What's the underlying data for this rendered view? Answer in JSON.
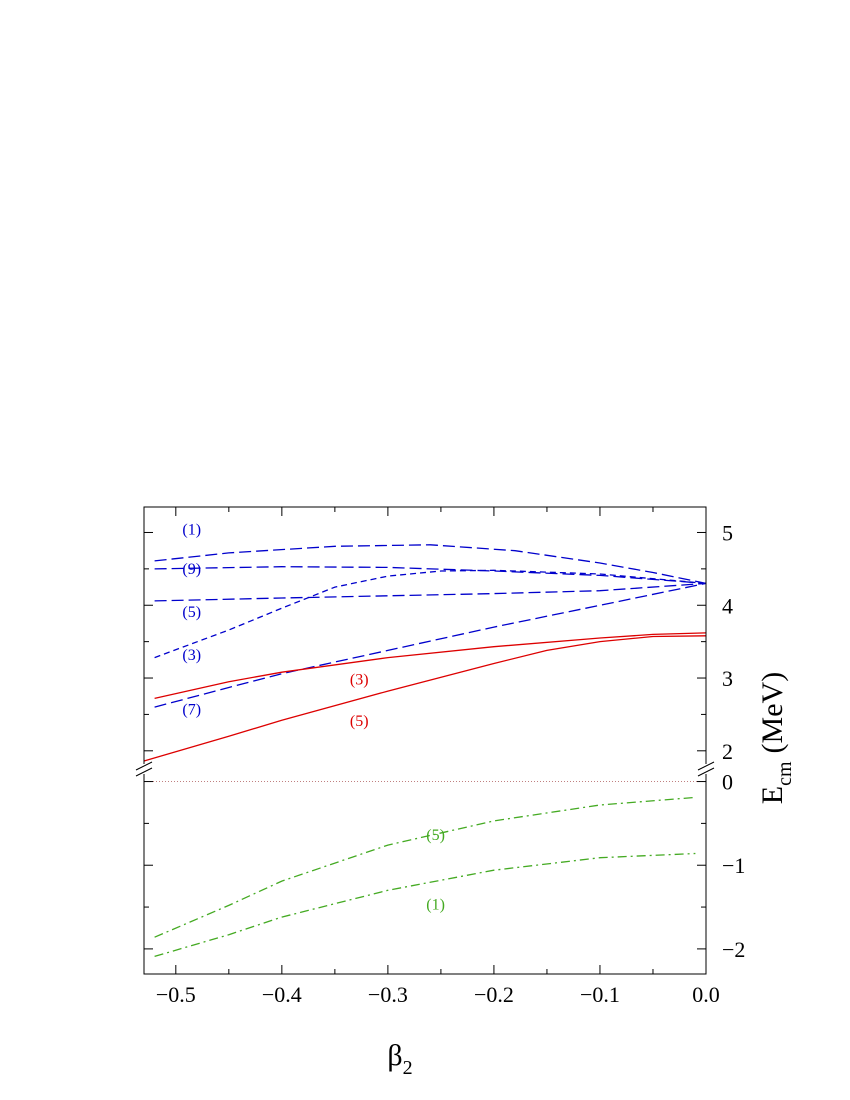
{
  "chart_data": {
    "type": "line",
    "xlabel": "β",
    "xlabel_sub": "2",
    "ylabel": "E",
    "ylabel_sub": "cm",
    "ylabel_unit": "(MeV)",
    "xlim": [
      -0.53,
      0.0
    ],
    "x_ticks": [
      -0.5,
      -0.4,
      -0.3,
      -0.2,
      -0.1,
      0.0
    ],
    "x_tick_labels": [
      "−0.5",
      "−0.4",
      "−0.3",
      "−0.2",
      "−0.1",
      "0.0"
    ],
    "upper_panel": {
      "ylim": [
        1.75,
        5.35
      ],
      "y_ticks": [
        2,
        3,
        4,
        5
      ],
      "y_tick_labels": [
        "2",
        "3",
        "4",
        "5"
      ]
    },
    "lower_panel": {
      "ylim": [
        -2.3,
        0.15
      ],
      "y_ticks": [
        0,
        -1,
        -2
      ],
      "y_tick_labels": [
        "0",
        "−1",
        "−2"
      ],
      "zero_line": true
    },
    "series": [
      {
        "label": "(1)",
        "panel": "upper",
        "color": "#0000cc",
        "style": "long-dash",
        "label_pos": [
          -0.485,
          4.97
        ],
        "points": [
          [
            -0.52,
            4.61
          ],
          [
            -0.45,
            4.72
          ],
          [
            -0.35,
            4.81
          ],
          [
            -0.26,
            4.83
          ],
          [
            -0.18,
            4.75
          ],
          [
            -0.1,
            4.58
          ],
          [
            -0.05,
            4.45
          ],
          [
            0.0,
            4.3
          ]
        ]
      },
      {
        "label": "(9)",
        "panel": "upper",
        "color": "#0000cc",
        "style": "long-dash",
        "label_pos": [
          -0.485,
          4.43
        ],
        "points": [
          [
            -0.52,
            4.5
          ],
          [
            -0.4,
            4.53
          ],
          [
            -0.3,
            4.52
          ],
          [
            -0.2,
            4.47
          ],
          [
            -0.1,
            4.41
          ],
          [
            0.0,
            4.3
          ]
        ]
      },
      {
        "label": "(5)",
        "panel": "upper",
        "color": "#0000cc",
        "style": "long-dash",
        "label_pos": [
          -0.485,
          3.84
        ],
        "points": [
          [
            -0.52,
            4.06
          ],
          [
            -0.4,
            4.1
          ],
          [
            -0.3,
            4.13
          ],
          [
            -0.2,
            4.16
          ],
          [
            -0.1,
            4.2
          ],
          [
            0.0,
            4.3
          ]
        ]
      },
      {
        "label": "(3)",
        "panel": "upper",
        "color": "#0000cc",
        "style": "short-dash",
        "label_pos": [
          -0.485,
          3.25
        ],
        "points": [
          [
            -0.52,
            3.28
          ],
          [
            -0.45,
            3.66
          ],
          [
            -0.4,
            3.96
          ],
          [
            -0.35,
            4.25
          ],
          [
            -0.3,
            4.4
          ],
          [
            -0.25,
            4.47
          ],
          [
            -0.2,
            4.48
          ],
          [
            -0.1,
            4.43
          ],
          [
            0.0,
            4.3
          ]
        ]
      },
      {
        "label": "(7)",
        "panel": "upper",
        "color": "#0000cc",
        "style": "long-dash",
        "label_pos": [
          -0.485,
          2.5
        ],
        "points": [
          [
            -0.52,
            2.6
          ],
          [
            -0.45,
            2.87
          ],
          [
            -0.4,
            3.06
          ],
          [
            -0.3,
            3.38
          ],
          [
            -0.2,
            3.7
          ],
          [
            -0.1,
            4.0
          ],
          [
            0.0,
            4.3
          ]
        ]
      },
      {
        "label": "(3)",
        "panel": "upper",
        "color": "#dd0000",
        "style": "solid",
        "label_pos": [
          -0.327,
          2.91
        ],
        "points": [
          [
            -0.52,
            2.72
          ],
          [
            -0.45,
            2.95
          ],
          [
            -0.4,
            3.08
          ],
          [
            -0.3,
            3.28
          ],
          [
            -0.2,
            3.43
          ],
          [
            -0.1,
            3.55
          ],
          [
            -0.05,
            3.6
          ],
          [
            0.0,
            3.62
          ]
        ]
      },
      {
        "label": "(5)",
        "panel": "upper",
        "color": "#dd0000",
        "style": "solid",
        "label_pos": [
          -0.327,
          2.34
        ],
        "points": [
          [
            -0.53,
            1.86
          ],
          [
            -0.45,
            2.2
          ],
          [
            -0.4,
            2.42
          ],
          [
            -0.3,
            2.82
          ],
          [
            -0.2,
            3.2
          ],
          [
            -0.15,
            3.38
          ],
          [
            -0.1,
            3.5
          ],
          [
            -0.05,
            3.57
          ],
          [
            0.0,
            3.58
          ]
        ]
      },
      {
        "label": "(5)",
        "panel": "lower",
        "color": "#44aa22",
        "style": "dash-dot",
        "label_pos": [
          -0.255,
          -0.7
        ],
        "points": [
          [
            -0.52,
            -1.86
          ],
          [
            -0.45,
            -1.48
          ],
          [
            -0.4,
            -1.19
          ],
          [
            -0.3,
            -0.76
          ],
          [
            -0.2,
            -0.47
          ],
          [
            -0.1,
            -0.28
          ],
          [
            -0.01,
            -0.19
          ]
        ]
      },
      {
        "label": "(1)",
        "panel": "lower",
        "color": "#44aa22",
        "style": "dash-dot",
        "label_pos": [
          -0.255,
          -1.53
        ],
        "points": [
          [
            -0.52,
            -2.09
          ],
          [
            -0.45,
            -1.83
          ],
          [
            -0.4,
            -1.62
          ],
          [
            -0.3,
            -1.3
          ],
          [
            -0.2,
            -1.06
          ],
          [
            -0.1,
            -0.91
          ],
          [
            -0.01,
            -0.86
          ]
        ]
      }
    ]
  }
}
